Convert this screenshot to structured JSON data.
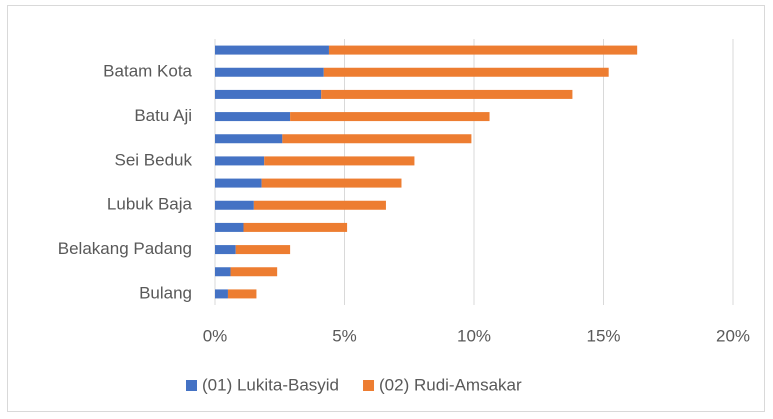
{
  "chart_data": {
    "type": "stacked-bar-horizontal",
    "categories": [
      null,
      "Batam Kota",
      null,
      "Batu Aji",
      null,
      "Sei Beduk",
      null,
      "Lubuk Baja",
      null,
      "Belakang Padang",
      null,
      "Bulang"
    ],
    "series": [
      {
        "name": "(01) Lukita-Basyid",
        "color": "#4472c4",
        "values": [
          4.4,
          4.2,
          4.1,
          2.9,
          2.6,
          1.9,
          1.8,
          1.5,
          1.1,
          0.8,
          0.6,
          0.5
        ]
      },
      {
        "name": "(02) Rudi-Amsakar",
        "color": "#ed7d31",
        "values": [
          11.9,
          11.0,
          9.7,
          7.7,
          7.3,
          5.8,
          5.4,
          5.1,
          4.0,
          2.1,
          1.8,
          1.1
        ]
      }
    ],
    "xlim": [
      0,
      20
    ],
    "xticks": [
      {
        "value": 0,
        "label": "0%"
      },
      {
        "value": 5,
        "label": "5%"
      },
      {
        "value": 10,
        "label": "10%"
      },
      {
        "value": 15,
        "label": "15%"
      },
      {
        "value": 20,
        "label": "20%"
      }
    ],
    "grid": true,
    "legend": "bottom"
  }
}
